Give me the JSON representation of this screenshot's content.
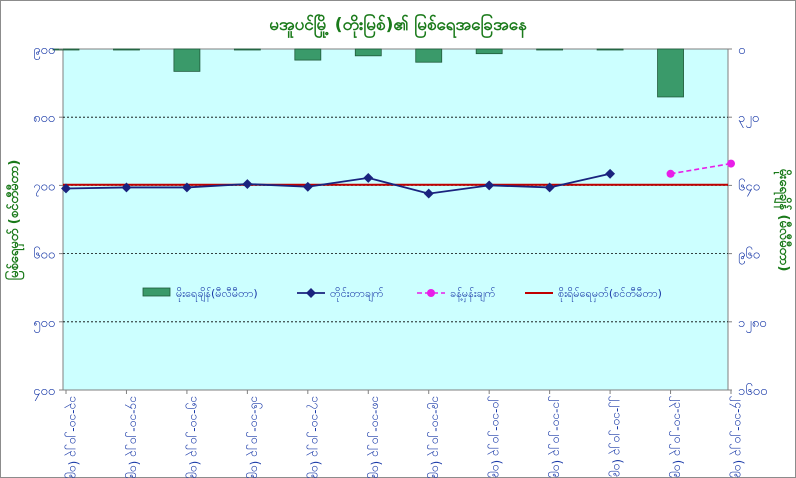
{
  "chart_data": {
    "type": "bar+line",
    "title": "မအူပင်မြို့ (တိုးမြစ်)၏ မြစ်ရေအခြေအနေ",
    "left_axis": {
      "label": "မြစ်ရေမှတ် (စင်တီမီတာ)",
      "ticks": [
        "၉၀၀",
        "၈၀၀",
        "၇၀၀",
        "၆၀၀",
        "၅၀၀",
        "၄၀၀"
      ],
      "range": [
        400,
        900
      ],
      "gridlines": [
        800,
        700,
        600,
        500
      ]
    },
    "right_axis": {
      "label": "မိုးရေချိန် (မီလီမီတာ)",
      "ticks": [
        "၀",
        "၃၂၀",
        "၆၄၀",
        "၉၆၀",
        "၁၂၈၀",
        "၁၆၀၀"
      ],
      "range": [
        0,
        1600
      ],
      "inverted": true
    },
    "categories": [
      "၁၃-၁၀-၂၀၂၃ (၀၉:၃၀)",
      "၁၄-၁၀-၂၀၂၃ (၀၉:၃၀)",
      "၁၅-၁၀-၂၀၂၃ (၀၉:၃၀)",
      "၁၆-၁၀-၂၀၂၃ (၀၉:၃၀)",
      "၁၇-၁၀-၂၀၂၃ (၀၉:၃၀)",
      "၁၈-၁၀-၂၀၂၃ (၀၉:၃၀)",
      "၁၉-၁၀-၂၀၂၃ (၀၉:၃၀)",
      "၂၀-၁၀-၂၀၂၃ (၀၉:၃၀)",
      "၂၁-၁၀-၂၀၂၃ (၀၉:၃၀)",
      "၂၂-၁၀-၂၀၂၃ (၀၉:၃၀)",
      "၂၃-၁၀-၂၀၂၃ (၀၉:၃၀)",
      "၂၄-၁၀-၂၀၂၃ (၀၉:၃၀)"
    ],
    "series": [
      {
        "name": "မိုးရေချိန်(မီလီမီတာ)",
        "kind": "bar",
        "axis": "right",
        "color": "#3a9a6a",
        "values": [
          2,
          2,
          105,
          2,
          52,
          32,
          62,
          22,
          2,
          2,
          225,
          null
        ]
      },
      {
        "name": "တိုင်းတာချက်",
        "kind": "line",
        "axis": "left",
        "color": "#1a237e",
        "values": [
          695.5,
          697,
          697,
          702,
          698,
          711,
          688,
          700,
          697,
          717,
          null,
          null
        ]
      },
      {
        "name": "ခန့်မှန်းချက်",
        "kind": "dashed-line",
        "axis": "left",
        "color": "#e81ee8",
        "values": [
          null,
          null,
          null,
          null,
          null,
          null,
          null,
          null,
          null,
          null,
          717,
          732
        ]
      },
      {
        "name": "စိုးရိမ်ရေမှတ်(စင်တီမီတာ)",
        "kind": "hline",
        "axis": "left",
        "color": "#c00000",
        "value": 701
      }
    ],
    "legend_position": "center-inside",
    "background": "#ccffff"
  }
}
